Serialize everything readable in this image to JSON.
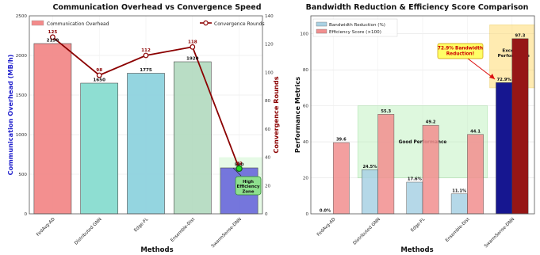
{
  "chart_data": [
    {
      "type": "bar",
      "title": "Communication Overhead vs Convergence Speed",
      "xlabel": "Methods",
      "ylabel": "Communication Overhead (MB/h)",
      "y2label": "Convergence Rounds",
      "categories": [
        "FedAvg-AD",
        "Distributed GNN",
        "Edge-FL",
        "Ensemble-Dist",
        "SwarmSense-DNN"
      ],
      "ylim": [
        0,
        2500
      ],
      "y2lim": [
        0,
        140
      ],
      "yticks": [
        "0",
        "500",
        "1000",
        "1500",
        "2000",
        "2500"
      ],
      "y2ticks": [
        "0",
        "20",
        "40",
        "60",
        "80",
        "100",
        "120",
        "140"
      ],
      "series": [
        {
          "name": "Communication Overhead",
          "kind": "bar",
          "values": [
            2150,
            1650,
            1775,
            1920,
            580
          ],
          "labels": [
            "2150",
            "1650",
            "1775",
            "1920",
            "580"
          ],
          "colors": [
            "#f38a8a",
            "#89ddd0",
            "#8fd3df",
            "#b6dcc2",
            "#6f6fdc"
          ]
        },
        {
          "name": "Convergence Rounds",
          "kind": "line",
          "axis": "right",
          "values": [
            125,
            98,
            112,
            118,
            32
          ],
          "labels": [
            "125",
            "98",
            "112",
            "118",
            "32"
          ],
          "color": "#8b0000"
        }
      ],
      "annotations": [
        "High Efficiency Zone"
      ],
      "legend": "top",
      "grid": true
    },
    {
      "type": "bar",
      "title": "Bandwidth Reduction & Efficiency Score Comparison",
      "xlabel": "Methods",
      "ylabel": "Performance Metrics",
      "categories": [
        "FedAvg-AD",
        "Distributed GNN",
        "Edge-FL",
        "Ensemble-Dist",
        "SwarmSense-DNN"
      ],
      "ylim": [
        0,
        110
      ],
      "yticks": [
        "0",
        "20",
        "40",
        "60",
        "80",
        "100"
      ],
      "series": [
        {
          "name": "Bandwidth Reduction (%)",
          "values": [
            0.0,
            24.5,
            17.6,
            11.1,
            72.9
          ],
          "labels": [
            "0.0%",
            "24.5%",
            "17.6%",
            "11.1%",
            "72.9%"
          ],
          "color": "#a9d2e4",
          "highlight_color": "#161690"
        },
        {
          "name": "Efficiency Score (×100)",
          "values": [
            39.6,
            55.3,
            49.2,
            44.1,
            97.3
          ],
          "labels": [
            "39.6",
            "55.3",
            "49.2",
            "44.1",
            "97.3"
          ],
          "color": "#f28f8f",
          "highlight_color": "#961616"
        }
      ],
      "annotations": [
        "Good Performance",
        "Excellent Performance",
        "72.9% Bandwidth Reduction!"
      ],
      "legend": "top-left",
      "grid": true
    }
  ]
}
